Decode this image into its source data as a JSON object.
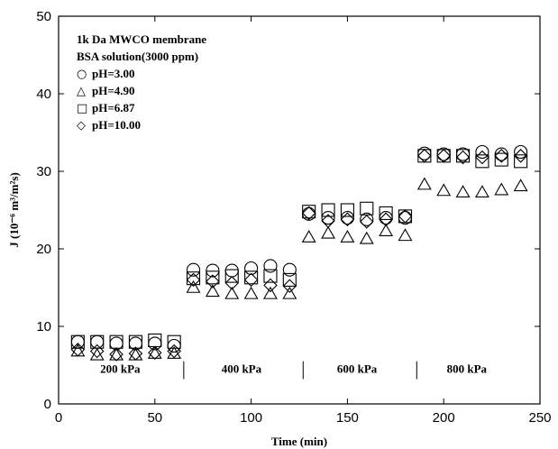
{
  "chart_data": {
    "type": "scatter",
    "xlabel": "Time (min)",
    "ylabel": "J (10⁻⁶ m³/m²s)",
    "xlim": [
      0,
      250
    ],
    "ylim": [
      0,
      50
    ],
    "xticks": [
      "0",
      "50",
      "100",
      "150",
      "200",
      "250"
    ],
    "yticks": [
      "0",
      "10",
      "20",
      "30",
      "40",
      "50"
    ],
    "grid": false,
    "legend_position": "top-left",
    "annotations": [
      "1k Da MWCO membrane",
      "BSA solution(3000 ppm)"
    ],
    "regions": [
      {
        "label": "200 kPa",
        "center_x": 32
      },
      {
        "label": "400 kPa",
        "center_x": 95
      },
      {
        "label": "600 kPa",
        "center_x": 155
      },
      {
        "label": "800 kPa",
        "center_x": 212
      }
    ],
    "region_dividers_x": [
      65,
      127,
      186
    ],
    "x": [
      10,
      20,
      30,
      40,
      50,
      60,
      70,
      80,
      90,
      100,
      110,
      120,
      130,
      140,
      150,
      160,
      170,
      180,
      190,
      200,
      210,
      220,
      230,
      240
    ],
    "series": [
      {
        "name": "pH=3.00",
        "marker": "circle",
        "values": [
          8.0,
          8.0,
          7.8,
          7.8,
          7.8,
          7.5,
          17.3,
          17.2,
          17.2,
          17.5,
          17.8,
          17.3,
          24.5,
          24.0,
          24.0,
          23.8,
          24.0,
          24.0,
          32.3,
          32.2,
          32.2,
          32.5,
          32.2,
          32.5
        ]
      },
      {
        "name": "pH=4.90",
        "marker": "triangle",
        "values": [
          6.8,
          6.3,
          6.3,
          6.3,
          6.5,
          6.5,
          15.0,
          14.5,
          14.2,
          14.2,
          14.2,
          14.2,
          21.5,
          22.0,
          21.5,
          21.3,
          22.3,
          21.7,
          28.3,
          27.5,
          27.3,
          27.3,
          27.6,
          28.1
        ]
      },
      {
        "name": "pH=6.87",
        "marker": "square",
        "values": [
          8.0,
          8.0,
          8.0,
          8.0,
          8.2,
          8.0,
          16.2,
          16.3,
          16.5,
          16.3,
          16.5,
          16.0,
          24.8,
          25.0,
          25.0,
          25.2,
          24.6,
          24.2,
          32.0,
          32.0,
          32.0,
          31.3,
          31.5,
          31.3
        ]
      },
      {
        "name": "pH=10.00",
        "marker": "diamond",
        "values": [
          7.0,
          6.8,
          6.4,
          6.5,
          6.6,
          6.8,
          16.0,
          15.8,
          15.6,
          16.0,
          15.3,
          15.2,
          24.6,
          23.6,
          23.8,
          23.5,
          23.8,
          24.2,
          32.0,
          32.0,
          31.8,
          31.8,
          32.0,
          32.0
        ]
      }
    ]
  }
}
